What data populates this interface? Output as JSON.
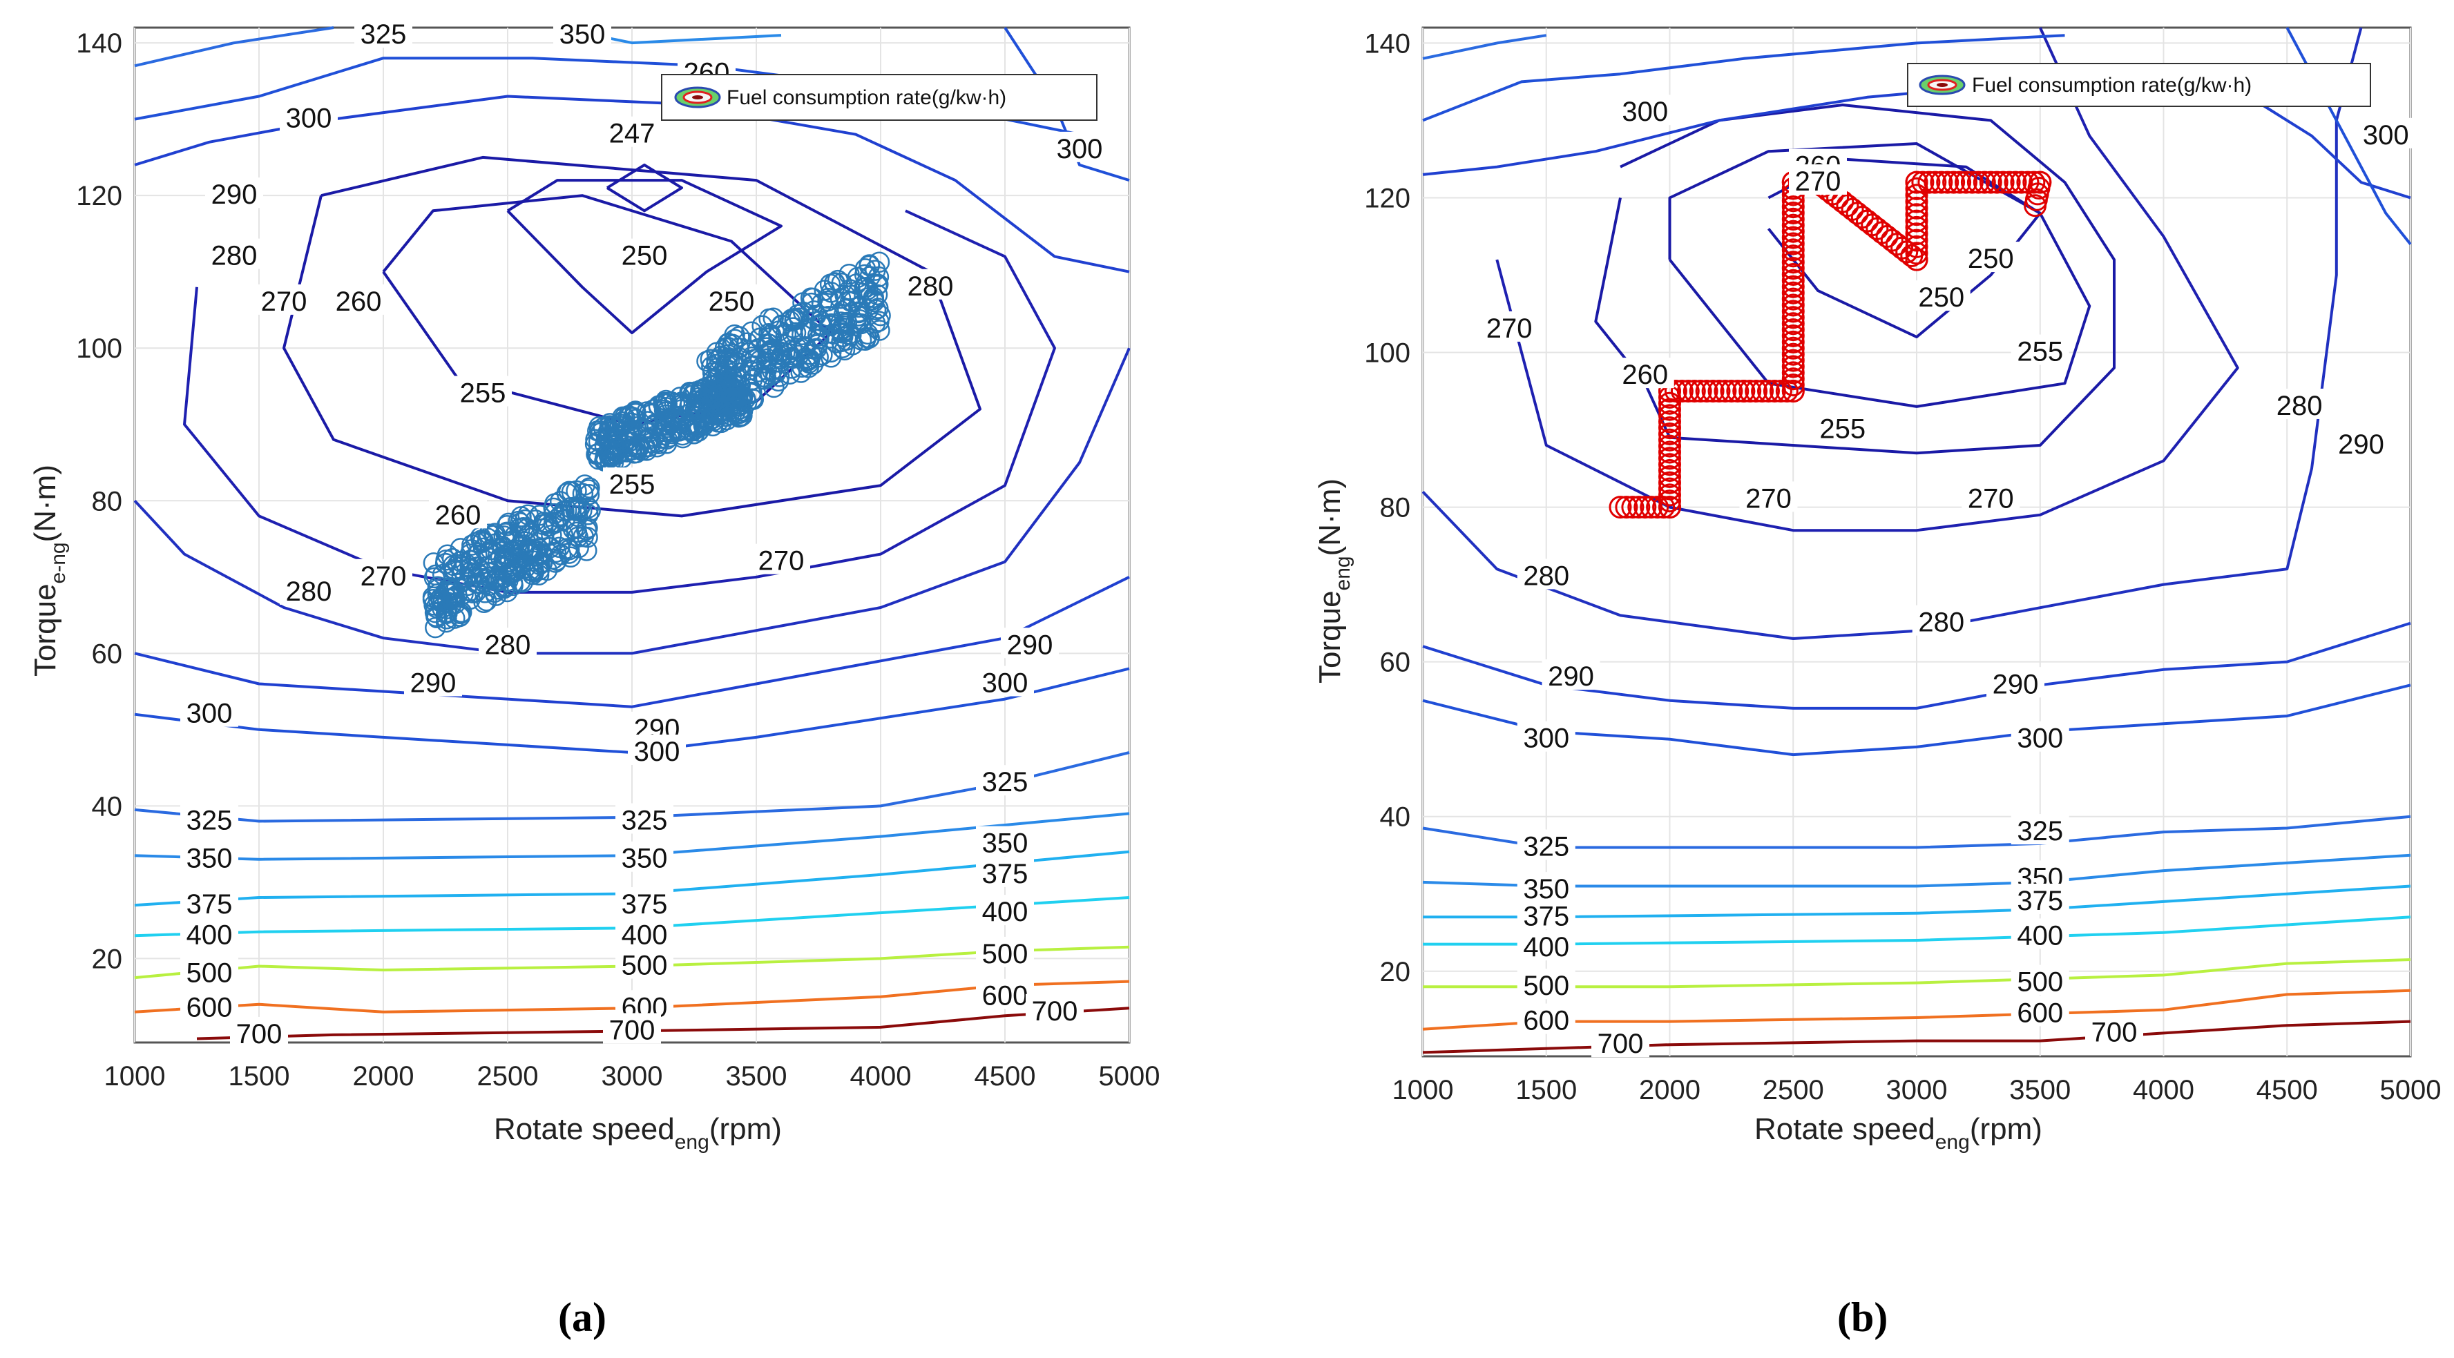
{
  "chart_data": [
    {
      "panel_label": "(a)",
      "type": "contour+scatter",
      "xlabel": "Rotate speed",
      "xlabel_sub": "eng",
      "xlabel_unit": "(rpm)",
      "ylabel": "Torque",
      "ylabel_sub": "e-ng",
      "ylabel_unit": "(N·m)",
      "x_ticks": [
        "1000",
        "1500",
        "2000",
        "2500",
        "3000",
        "3500",
        "4000",
        "4500",
        "5000"
      ],
      "y_ticks": [
        "20",
        "40",
        "60",
        "80",
        "100",
        "120",
        "140"
      ],
      "xlim": [
        1000,
        5000
      ],
      "ylim": [
        9,
        142
      ],
      "legend": "Fuel consumption rate(g/kw·h)",
      "contour_levels": [
        247,
        250,
        255,
        260,
        270,
        280,
        290,
        300,
        325,
        350,
        375,
        400,
        500,
        600,
        700
      ],
      "level_colors": {
        "247": "#1a1aa6",
        "250": "#1a1aa6",
        "255": "#1a1aa6",
        "260": "#1a1aa6",
        "270": "#1e20b0",
        "280": "#2030c0",
        "290": "#2040d0",
        "300": "#2050d8",
        "325": "#2a6ae0",
        "350": "#2a8ae8",
        "375": "#20b0f0",
        "400": "#20d0f0",
        "500": "#b8f040",
        "600": "#f07020",
        "700": "#8a0a0a"
      },
      "contour_labels": [
        "247",
        "250",
        "250",
        "255",
        "255",
        "260",
        "260",
        "260",
        "270",
        "270",
        "270",
        "280",
        "280",
        "280",
        "280",
        "290",
        "290",
        "290",
        "290",
        "300",
        "300",
        "300",
        "300",
        "300",
        "325",
        "325",
        "325",
        "325",
        "350",
        "350",
        "350",
        "350",
        "375",
        "375",
        "375",
        "400",
        "400",
        "400",
        "500",
        "500",
        "500",
        "600",
        "600",
        "600",
        "700",
        "700",
        "700"
      ],
      "scatter": {
        "name": "operating points",
        "color": "#2a7ab8",
        "marker": "circle",
        "clusters": [
          {
            "x_range": [
              2200,
              2850
            ],
            "y_range": [
              63,
              83
            ]
          },
          {
            "x_range": [
              2850,
              3450
            ],
            "y_range": [
              84,
              97
            ]
          },
          {
            "x_range": [
              3300,
              4000
            ],
            "y_range": [
              90,
              112
            ]
          }
        ]
      }
    },
    {
      "panel_label": "(b)",
      "type": "contour+scatter",
      "xlabel": "Rotate speed",
      "xlabel_sub": "eng",
      "xlabel_unit": "(rpm)",
      "ylabel": "Torque",
      "ylabel_sub": "eng",
      "ylabel_unit": "(N·m)",
      "x_ticks": [
        "1000",
        "1500",
        "2000",
        "2500",
        "3000",
        "3500",
        "4000",
        "4500",
        "5000"
      ],
      "y_ticks": [
        "20",
        "40",
        "60",
        "80",
        "100",
        "120",
        "140"
      ],
      "xlim": [
        1000,
        5000
      ],
      "ylim": [
        9,
        142
      ],
      "legend": "Fuel consumption rate(g/kw·h)",
      "contour_levels": [
        250,
        255,
        260,
        270,
        280,
        290,
        300,
        325,
        350,
        375,
        400,
        500,
        600,
        700
      ],
      "contour_labels": [
        "250",
        "250",
        "255",
        "255",
        "260",
        "260",
        "270",
        "270",
        "270",
        "270",
        "280",
        "280",
        "280",
        "290",
        "290",
        "290",
        "300",
        "300",
        "300",
        "300",
        "325",
        "325",
        "350",
        "350",
        "375",
        "375",
        "400",
        "400",
        "500",
        "500",
        "600",
        "600",
        "700",
        "700"
      ],
      "scatter": {
        "name": "operating points",
        "color": "#e00000",
        "marker": "circle",
        "path": [
          [
            1800,
            80
          ],
          [
            2000,
            80
          ],
          [
            2000,
            95
          ],
          [
            2300,
            95
          ],
          [
            2500,
            95
          ],
          [
            2500,
            122
          ],
          [
            2600,
            122
          ],
          [
            2800,
            117
          ],
          [
            3000,
            112
          ],
          [
            3000,
            122
          ],
          [
            3500,
            122
          ],
          [
            3480,
            119
          ]
        ]
      }
    }
  ]
}
